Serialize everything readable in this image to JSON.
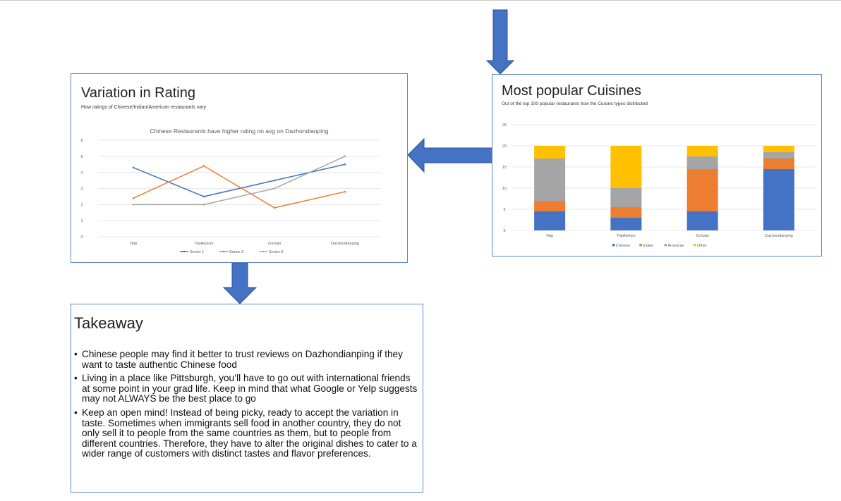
{
  "diagram": {
    "rating_panel": {
      "title": "Variation in Rating",
      "subtitle": "How ratings of Chinese/Indian/American restaurants vary"
    },
    "cuisine_panel": {
      "title": "Most popular Cuisines",
      "subtitle": "Out of the top 100 popular restaurants how the Cuisine types distributed"
    },
    "takeaway": {
      "title": "Takeaway",
      "bullets": [
        "Chinese people may find it better to trust reviews on Dazhondianping if they want to taste authentic Chinese food",
        "Living in a place like Pittsburgh, you’ll have to go out with international friends at some point in your grad life. Keep in mind that what Google or Yelp suggests may not ALWAYS be the best place to go",
        "Keep an open mind! Instead of being picky, ready to accept the variation in taste. Sometimes when immigrants sell food in another country, they do not only sell it to people from the same countries as them, but to people from different countries. Therefore, they have to alter the original dishes to cater to a wider range of customers with distinct tastes and flavor preferences."
      ]
    },
    "arrow_color": "#4472c4"
  },
  "chart_data": [
    {
      "type": "line",
      "title": "Chinese Restaurants have higher rating on avg on Dazhondianping",
      "categories": [
        "Yelp",
        "TripAdvisor",
        "Zomato",
        "Dazhondianping"
      ],
      "ylim": [
        0,
        6
      ],
      "yticks": [
        0,
        1,
        2,
        3,
        4,
        5,
        6
      ],
      "grid": true,
      "legend": "bottom",
      "series": [
        {
          "name": "Series 1",
          "color": "#4472c4",
          "values": [
            4.3,
            2.5,
            3.5,
            4.5
          ]
        },
        {
          "name": "Series 2",
          "color": "#ed7d31",
          "values": [
            2.4,
            4.4,
            1.8,
            2.8
          ]
        },
        {
          "name": "Series 3",
          "color": "#a5a5a5",
          "values": [
            2.0,
            2.0,
            3.0,
            5.0
          ]
        }
      ]
    },
    {
      "type": "bar",
      "stacked": true,
      "categories": [
        "Yelp",
        "TripAdvisor",
        "Zomato",
        "Dazhondianping"
      ],
      "ylim": [
        0,
        25
      ],
      "yticks": [
        0,
        5,
        10,
        15,
        20,
        25
      ],
      "grid": true,
      "legend": "bottom",
      "series": [
        {
          "name": "Chinese",
          "color": "#4472c4",
          "values": [
            4.5,
            3,
            4.5,
            14.5
          ]
        },
        {
          "name": "Indian",
          "color": "#ed7d31",
          "values": [
            2.5,
            2.5,
            10,
            2.5
          ]
        },
        {
          "name": "American",
          "color": "#a5a5a5",
          "values": [
            10,
            4.5,
            3,
            1.5
          ]
        },
        {
          "name": "Other",
          "color": "#ffc000",
          "values": [
            3,
            10,
            2.5,
            1.5
          ]
        }
      ]
    }
  ]
}
